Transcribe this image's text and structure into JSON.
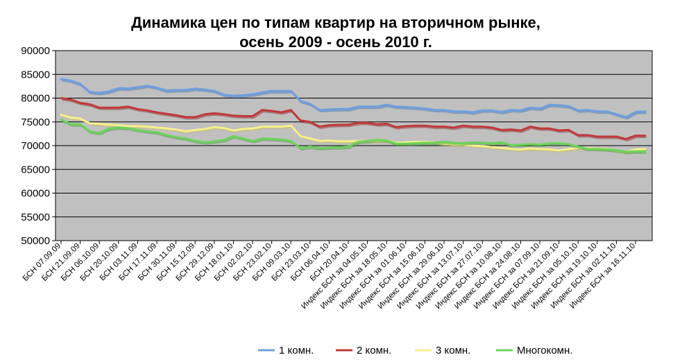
{
  "chart_data": {
    "type": "line",
    "title": "Динамика цен по типам квартир на вторичном рынке,",
    "subtitle": "осень 2009 - осень 2010 г.",
    "ylim": [
      50000,
      90000
    ],
    "yticks": [
      "50000",
      "55000",
      "60000",
      "65000",
      "70000",
      "75000",
      "80000",
      "85000",
      "90000"
    ],
    "grid": true,
    "legend_position": "bottom",
    "x_tick_labels": [
      "БСН 07.09.09",
      "БСН 21.09.09",
      "БСН 06.10.09",
      "БСН 20.10.09",
      "БСН 03.11.09",
      "БСН 17.11.09",
      "БСН 30.11.09",
      "БСН 15.12.09",
      "БСН 29.12.09",
      "БСН 18.01.10",
      "БСН 02.02.10",
      "БСН 23.02.10",
      "БСН 09.03.10",
      "БСН 23.03.10",
      "БСН 06.04.10",
      "БСН 20.04.10",
      "Индекс БСН за 04.05.10",
      "Индекс БСН за 18.05.10",
      "Индекс БСН за 01.06.10",
      "Индекс БСН за 15.06.10",
      "Индекс БСН за 29.06.10",
      "Индекс БСН за 13.07.10",
      "Индекс БСН за 27.07.10",
      "Индекс БСН за 10.08.10",
      "Индекс БСН за 24.08.10",
      "Индекс БСН за 07.09.10",
      "Индекс БСН за 21.09.10",
      "Индекс БСН за 05.10.10",
      "Индекс БСН за 19.10.10",
      "Индекс БСН за 02.11.10",
      "Индекс БСН за 16.11.10"
    ],
    "series": [
      {
        "name": "1 комн.",
        "color": "#6f9ede",
        "values": [
          84000,
          83700,
          83000,
          81300,
          81100,
          81400,
          82100,
          82000,
          82300,
          82600,
          82200,
          81600,
          81700,
          81700,
          82000,
          81800,
          81500,
          80700,
          80500,
          80600,
          80800,
          81200,
          81500,
          81500,
          81500,
          79400,
          78800,
          77500,
          77600,
          77700,
          77700,
          78200,
          78200,
          78200,
          78600,
          78200,
          78100,
          78000,
          77800,
          77500,
          77500,
          77200,
          77200,
          77000,
          77400,
          77400,
          77100,
          77500,
          77400,
          78000,
          77800,
          78600,
          78500,
          78300,
          77400,
          77500,
          77200,
          77200,
          76600,
          76000,
          77100,
          77200
        ]
      },
      {
        "name": "2 комн.",
        "color": "#c0393b",
        "values": [
          80000,
          79700,
          79000,
          78700,
          78000,
          78000,
          78000,
          78200,
          77700,
          77400,
          77000,
          76700,
          76400,
          76000,
          76000,
          76600,
          76800,
          76600,
          76300,
          76200,
          76200,
          77500,
          77300,
          77000,
          77500,
          75300,
          75000,
          74000,
          74300,
          74400,
          74400,
          74800,
          74800,
          74500,
          74600,
          73900,
          74100,
          74200,
          74200,
          74000,
          74000,
          73800,
          74200,
          74000,
          74000,
          73800,
          73300,
          73400,
          73200,
          74000,
          73600,
          73600,
          73200,
          73300,
          72200,
          72200,
          71900,
          71900,
          71900,
          71400,
          72100,
          72100
        ]
      },
      {
        "name": "3 комн.",
        "color": "#f7f08c",
        "values": [
          76500,
          75900,
          75700,
          74700,
          74600,
          74400,
          74300,
          74100,
          74100,
          74000,
          73800,
          73600,
          73400,
          73000,
          73300,
          73500,
          73900,
          73700,
          73200,
          73500,
          73600,
          74000,
          74000,
          74000,
          74200,
          72000,
          71500,
          71000,
          71100,
          70900,
          70900,
          71000,
          71000,
          71000,
          71100,
          70600,
          70700,
          70800,
          70800,
          70700,
          70400,
          70200,
          70200,
          70000,
          69900,
          69700,
          69500,
          69300,
          69200,
          69400,
          69300,
          69200,
          69000,
          69300,
          69500,
          69500,
          69400,
          69300,
          68900,
          68700,
          69200,
          69300
        ]
      },
      {
        "name": "Многокомн.",
        "color": "#6bd35a",
        "values": [
          75500,
          74500,
          74500,
          73000,
          72700,
          73600,
          73800,
          73700,
          73300,
          73000,
          72800,
          72200,
          71800,
          71500,
          71000,
          70700,
          70900,
          71200,
          72000,
          71500,
          71000,
          71500,
          71400,
          71300,
          71000,
          69500,
          69800,
          69500,
          69600,
          69700,
          69800,
          70800,
          71000,
          71200,
          71100,
          70400,
          70400,
          70500,
          70600,
          70600,
          70800,
          70600,
          70500,
          70700,
          70600,
          70500,
          70700,
          70100,
          70200,
          70300,
          70200,
          70500,
          70500,
          70300,
          69800,
          69300,
          69300,
          69200,
          69000,
          68700,
          68800,
          68800
        ]
      }
    ]
  }
}
